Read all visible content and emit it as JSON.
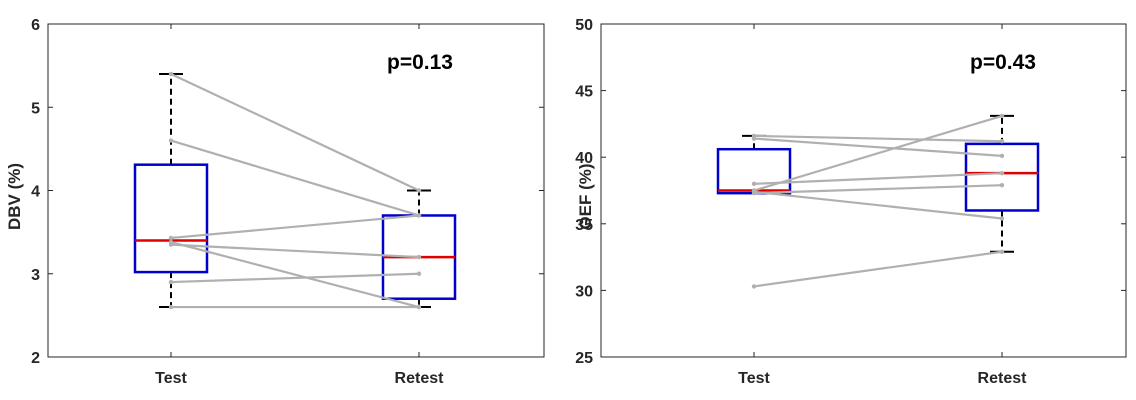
{
  "colors": {
    "box": "#0000cc",
    "median": "#e00000",
    "whisker": "#000000",
    "subject_line": "#b0b0b0",
    "axis": "#262626"
  },
  "chart_data": [
    {
      "type": "boxplot",
      "ylabel": "DBV (%)",
      "categories": [
        "Test",
        "Retest"
      ],
      "ylim": [
        2,
        6
      ],
      "yticks": [
        "2",
        "3",
        "4",
        "5",
        "6"
      ],
      "annotation": "p=0.13",
      "boxes": [
        {
          "whisker_low": 2.6,
          "q1": 3.02,
          "median": 3.4,
          "q3": 4.31,
          "whisker_high": 5.4
        },
        {
          "whisker_low": 2.6,
          "q1": 2.7,
          "median": 3.2,
          "q3": 3.7,
          "whisker_high": 4.0
        }
      ],
      "pairs": [
        [
          5.4,
          4.0
        ],
        [
          4.6,
          3.7
        ],
        [
          3.43,
          3.7
        ],
        [
          3.35,
          3.2
        ],
        [
          3.38,
          2.6
        ],
        [
          2.9,
          3.0
        ],
        [
          2.6,
          2.6
        ]
      ]
    },
    {
      "type": "boxplot",
      "ylabel": "OEF (%)",
      "categories": [
        "Test",
        "Retest"
      ],
      "ylim": [
        25,
        50
      ],
      "yticks": [
        "25",
        "30",
        "35",
        "40",
        "45",
        "50"
      ],
      "annotation": "p=0.43",
      "boxes": [
        {
          "whisker_low": 37.3,
          "q1": 37.3,
          "median": 37.5,
          "q3": 40.6,
          "whisker_high": 41.6
        },
        {
          "whisker_low": 32.9,
          "q1": 36.0,
          "median": 38.8,
          "q3": 41.0,
          "whisker_high": 43.1
        }
      ],
      "pairs": [
        [
          41.6,
          41.2
        ],
        [
          41.4,
          40.1
        ],
        [
          38.0,
          38.8
        ],
        [
          37.5,
          43.1
        ],
        [
          37.3,
          37.9
        ],
        [
          37.4,
          35.4
        ],
        [
          30.3,
          32.9
        ]
      ]
    }
  ]
}
